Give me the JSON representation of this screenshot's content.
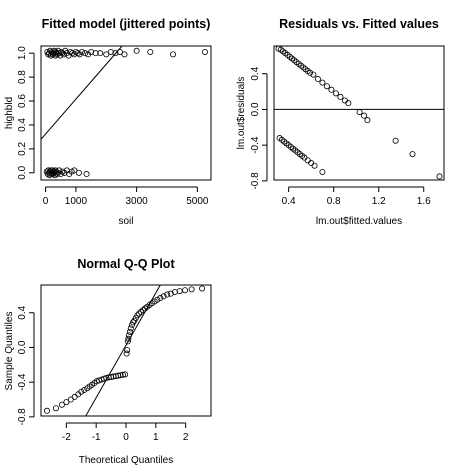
{
  "charts": [
    {
      "type": "scatter",
      "title": "Fitted model (jittered points)",
      "xlabel": "soil",
      "ylabel": "highbld",
      "xlim": [
        -150,
        5450
      ],
      "ylim": [
        -0.06,
        1.06
      ],
      "xticks": [
        0,
        1000,
        3000,
        5000
      ],
      "xtick_labels": [
        "0",
        "1000",
        "3000",
        "5000"
      ],
      "yticks": [
        0.0,
        0.2,
        0.4,
        0.6,
        0.8,
        1.0
      ],
      "ytick_labels": [
        "0.0",
        "0.2",
        "0.4",
        "0.6",
        "0.8",
        "1.0"
      ],
      "line": {
        "x": [
          -150,
          2520
        ],
        "y": [
          0.28,
          1.06
        ]
      },
      "points": [
        [
          60,
          1.01
        ],
        [
          90,
          0.99
        ],
        [
          120,
          1.0
        ],
        [
          150,
          1.02
        ],
        [
          180,
          0.98
        ],
        [
          210,
          1.01
        ],
        [
          240,
          0.99
        ],
        [
          260,
          1.0
        ],
        [
          290,
          1.02
        ],
        [
          320,
          0.98
        ],
        [
          340,
          1.01
        ],
        [
          360,
          1.0
        ],
        [
          390,
          0.99
        ],
        [
          420,
          1.02
        ],
        [
          450,
          1.0
        ],
        [
          480,
          0.98
        ],
        [
          520,
          1.01
        ],
        [
          560,
          1.0
        ],
        [
          600,
          0.99
        ],
        [
          650,
          1.02
        ],
        [
          700,
          1.0
        ],
        [
          760,
          0.98
        ],
        [
          820,
          1.01
        ],
        [
          880,
          1.0
        ],
        [
          940,
          0.99
        ],
        [
          1000,
          1.01
        ],
        [
          1060,
          1.0
        ],
        [
          1120,
          0.99
        ],
        [
          1200,
          1.01
        ],
        [
          1300,
          1.0
        ],
        [
          1400,
          0.99
        ],
        [
          1500,
          1.01
        ],
        [
          1650,
          1.0
        ],
        [
          1800,
          1.0
        ],
        [
          2000,
          0.99
        ],
        [
          2150,
          1.01
        ],
        [
          2300,
          1.0
        ],
        [
          2450,
          1.01
        ],
        [
          2600,
          0.99
        ],
        [
          3000,
          1.02
        ],
        [
          3450,
          1.01
        ],
        [
          4200,
          0.99
        ],
        [
          5250,
          1.01
        ],
        [
          40,
          0.01
        ],
        [
          70,
          -0.01
        ],
        [
          90,
          0.02
        ],
        [
          110,
          0.0
        ],
        [
          130,
          -0.02
        ],
        [
          150,
          0.01
        ],
        [
          170,
          0.02
        ],
        [
          190,
          -0.01
        ],
        [
          210,
          0.0
        ],
        [
          230,
          0.02
        ],
        [
          250,
          -0.01
        ],
        [
          270,
          0.01
        ],
        [
          290,
          0.0
        ],
        [
          310,
          -0.02
        ],
        [
          330,
          0.02
        ],
        [
          350,
          0.01
        ],
        [
          380,
          -0.01
        ],
        [
          410,
          0.0
        ],
        [
          450,
          0.02
        ],
        [
          500,
          -0.01
        ],
        [
          560,
          0.01
        ],
        [
          620,
          0.0
        ],
        [
          700,
          0.02
        ],
        [
          780,
          -0.01
        ],
        [
          860,
          0.01
        ],
        [
          950,
          0.02
        ],
        [
          1100,
          0.0
        ],
        [
          1350,
          -0.01
        ]
      ]
    },
    {
      "type": "scatter",
      "title": "Residuals vs. Fitted values",
      "xlabel": "lm.out$fitted.values",
      "ylabel": "lm.out$residuals",
      "xlim": [
        0.27,
        1.78
      ],
      "ylim": [
        -0.79,
        0.71
      ],
      "xticks": [
        0.4,
        0.8,
        1.2,
        1.6
      ],
      "xtick_labels": [
        "0.4",
        "0.8",
        "1.2",
        "1.6"
      ],
      "yticks": [
        -0.8,
        -0.4,
        0.0,
        0.4
      ],
      "ytick_labels": [
        "-0.8",
        "-0.4",
        "0.0",
        "0.4"
      ],
      "hline": 0,
      "points": [
        [
          0.31,
          0.68
        ],
        [
          0.33,
          0.67
        ],
        [
          0.35,
          0.65
        ],
        [
          0.37,
          0.63
        ],
        [
          0.39,
          0.61
        ],
        [
          0.41,
          0.59
        ],
        [
          0.43,
          0.57
        ],
        [
          0.45,
          0.55
        ],
        [
          0.47,
          0.53
        ],
        [
          0.49,
          0.51
        ],
        [
          0.51,
          0.49
        ],
        [
          0.53,
          0.47
        ],
        [
          0.55,
          0.45
        ],
        [
          0.57,
          0.43
        ],
        [
          0.59,
          0.41
        ],
        [
          0.62,
          0.39
        ],
        [
          0.66,
          0.34
        ],
        [
          0.7,
          0.3
        ],
        [
          0.74,
          0.26
        ],
        [
          0.78,
          0.22
        ],
        [
          0.82,
          0.18
        ],
        [
          0.86,
          0.14
        ],
        [
          0.9,
          0.1
        ],
        [
          0.93,
          0.07
        ],
        [
          1.03,
          -0.03
        ],
        [
          1.07,
          -0.07
        ],
        [
          1.1,
          -0.12
        ],
        [
          1.35,
          -0.35
        ],
        [
          1.5,
          -0.5
        ],
        [
          1.74,
          -0.75
        ],
        [
          0.32,
          -0.32
        ],
        [
          0.34,
          -0.34
        ],
        [
          0.36,
          -0.36
        ],
        [
          0.38,
          -0.38
        ],
        [
          0.4,
          -0.4
        ],
        [
          0.42,
          -0.42
        ],
        [
          0.44,
          -0.44
        ],
        [
          0.46,
          -0.46
        ],
        [
          0.48,
          -0.48
        ],
        [
          0.5,
          -0.5
        ],
        [
          0.52,
          -0.52
        ],
        [
          0.54,
          -0.54
        ],
        [
          0.57,
          -0.57
        ],
        [
          0.6,
          -0.6
        ],
        [
          0.63,
          -0.63
        ],
        [
          0.7,
          -0.7
        ]
      ]
    },
    {
      "type": "scatter",
      "title": "Normal Q-Q Plot",
      "xlabel": "Theoretical Quantiles",
      "ylabel": "Sample Quantiles",
      "xlim": [
        -2.85,
        2.85
      ],
      "ylim": [
        -0.79,
        0.72
      ],
      "xticks": [
        -2,
        -1,
        0,
        1,
        2
      ],
      "xtick_labels": [
        "-2",
        "-1",
        "0",
        "1",
        "2"
      ],
      "yticks": [
        -0.8,
        -0.4,
        0.0,
        0.4
      ],
      "ytick_labels": [
        "-0.8",
        "-0.4",
        "0.0",
        "0.4"
      ],
      "line": {
        "x": [
          -1.35,
          1.15
        ],
        "y": [
          -0.79,
          0.72
        ]
      },
      "points": [
        [
          -2.65,
          -0.73
        ],
        [
          -2.35,
          -0.7
        ],
        [
          -2.15,
          -0.66
        ],
        [
          -2.0,
          -0.63
        ],
        [
          -1.85,
          -0.6
        ],
        [
          -1.72,
          -0.57
        ],
        [
          -1.6,
          -0.54
        ],
        [
          -1.5,
          -0.51
        ],
        [
          -1.4,
          -0.49
        ],
        [
          -1.3,
          -0.47
        ],
        [
          -1.22,
          -0.45
        ],
        [
          -1.14,
          -0.43
        ],
        [
          -1.06,
          -0.41
        ],
        [
          -0.98,
          -0.39
        ],
        [
          -0.9,
          -0.38
        ],
        [
          -0.82,
          -0.37
        ],
        [
          -0.74,
          -0.36
        ],
        [
          -0.66,
          -0.35
        ],
        [
          -0.58,
          -0.345
        ],
        [
          -0.5,
          -0.34
        ],
        [
          -0.42,
          -0.335
        ],
        [
          -0.34,
          -0.33
        ],
        [
          -0.26,
          -0.325
        ],
        [
          -0.18,
          -0.32
        ],
        [
          -0.1,
          -0.315
        ],
        [
          -0.03,
          -0.31
        ],
        [
          0.02,
          -0.07
        ],
        [
          0.04,
          -0.03
        ],
        [
          0.06,
          0.07
        ],
        [
          0.08,
          0.1
        ],
        [
          0.1,
          0.14
        ],
        [
          0.13,
          0.18
        ],
        [
          0.16,
          0.22
        ],
        [
          0.2,
          0.26
        ],
        [
          0.24,
          0.29
        ],
        [
          0.28,
          0.31
        ],
        [
          0.33,
          0.34
        ],
        [
          0.38,
          0.37
        ],
        [
          0.44,
          0.39
        ],
        [
          0.5,
          0.41
        ],
        [
          0.57,
          0.43
        ],
        [
          0.64,
          0.45
        ],
        [
          0.71,
          0.47
        ],
        [
          0.79,
          0.49
        ],
        [
          0.87,
          0.51
        ],
        [
          0.96,
          0.53
        ],
        [
          1.05,
          0.55
        ],
        [
          1.15,
          0.57
        ],
        [
          1.26,
          0.59
        ],
        [
          1.38,
          0.61
        ],
        [
          1.5,
          0.62
        ],
        [
          1.64,
          0.64
        ],
        [
          1.8,
          0.65
        ],
        [
          1.98,
          0.66
        ],
        [
          2.2,
          0.67
        ],
        [
          2.55,
          0.68
        ]
      ]
    }
  ]
}
